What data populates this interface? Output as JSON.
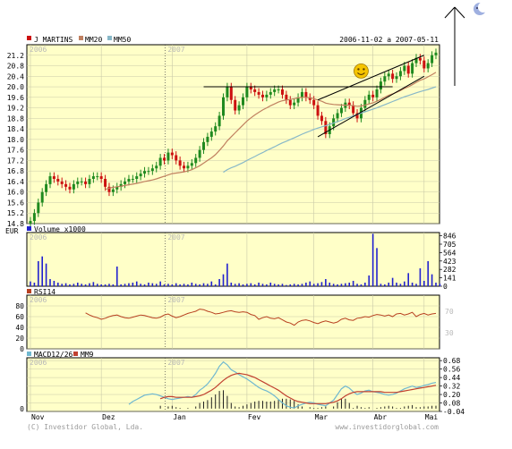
{
  "chart_data": {
    "type": "candlestick",
    "symbol": "J MARTINS",
    "date_range": "2006-11-02 a 2007-05-11",
    "currency_label": "EUR",
    "legend": [
      "J MARTINS",
      "MM20",
      "MM50"
    ],
    "colors": {
      "background": "#ffffc8",
      "grid": "#c9c9a8",
      "up": "#1f8a1f",
      "down": "#cc1010",
      "mm20": "#c08060",
      "mm50": "#88b8c8",
      "rsi": "#b84020",
      "macd": "#70b8d0",
      "mm9": "#c04030",
      "volume": "#2020d0",
      "hist": "#202020"
    },
    "months": [
      "Nov",
      "Dez",
      "Jan",
      "Fev",
      "Mar",
      "Abr",
      "Mai"
    ],
    "year_marks": [
      "2006",
      "2007"
    ],
    "price": {
      "y_ticks": [
        "21.2",
        "20.8",
        "20.4",
        "20.0",
        "19.6",
        "19.2",
        "18.8",
        "18.4",
        "18.0",
        "17.6",
        "17.2",
        "16.8",
        "16.4",
        "16.0",
        "15.6",
        "15.2",
        "14.8"
      ],
      "ylim": [
        14.8,
        21.6
      ],
      "closes": [
        14.9,
        15.2,
        15.6,
        16.0,
        16.3,
        16.6,
        16.5,
        16.4,
        16.3,
        16.2,
        16.1,
        16.3,
        16.4,
        16.4,
        16.3,
        16.5,
        16.6,
        16.6,
        16.5,
        16.2,
        16.0,
        16.1,
        16.2,
        16.3,
        16.4,
        16.5,
        16.5,
        16.6,
        16.7,
        16.8,
        16.8,
        16.9,
        17.0,
        17.3,
        17.2,
        17.5,
        17.4,
        17.2,
        17.0,
        16.9,
        17.0,
        17.1,
        17.3,
        17.6,
        17.9,
        18.1,
        18.3,
        18.5,
        18.9,
        19.6,
        20.0,
        19.5,
        19.1,
        19.3,
        19.6,
        20.0,
        19.9,
        19.8,
        19.7,
        19.6,
        19.7,
        19.8,
        19.9,
        19.9,
        19.7,
        19.5,
        19.3,
        19.4,
        19.6,
        19.8,
        19.6,
        19.5,
        19.3,
        18.9,
        18.7,
        18.2,
        18.5,
        18.8,
        19.0,
        19.2,
        19.4,
        19.3,
        19.0,
        18.8,
        19.2,
        19.5,
        19.7,
        19.6,
        19.9,
        20.2,
        20.4,
        20.5,
        20.3,
        20.4,
        20.6,
        20.8,
        20.5,
        20.9,
        21.1,
        21.0,
        20.7,
        20.9,
        21.2,
        21.3
      ],
      "mm20": [
        null,
        null,
        null,
        null,
        null,
        null,
        null,
        null,
        null,
        null,
        null,
        null,
        null,
        null,
        null,
        null,
        null,
        null,
        null,
        16.1,
        16.15,
        16.18,
        16.2,
        16.22,
        16.25,
        16.28,
        16.3,
        16.33,
        16.36,
        16.4,
        16.43,
        16.46,
        16.5,
        16.55,
        16.6,
        16.65,
        16.7,
        16.72,
        16.74,
        16.77,
        16.8,
        16.85,
        16.92,
        17.0,
        17.1,
        17.2,
        17.3,
        17.42,
        17.58,
        17.75,
        17.95,
        18.1,
        18.25,
        18.4,
        18.55,
        18.7,
        18.82,
        18.93,
        19.03,
        19.12,
        19.2,
        19.28,
        19.35,
        19.42,
        19.47,
        19.5,
        19.52,
        19.55,
        19.58,
        19.6,
        19.6,
        19.58,
        19.55,
        19.5,
        19.45,
        19.38,
        19.35,
        19.33,
        19.32,
        19.31,
        19.3,
        19.3,
        19.28,
        19.26,
        19.27,
        19.3,
        19.35,
        19.39,
        19.45,
        19.52,
        19.6,
        19.68,
        19.73,
        19.79,
        19.86,
        19.94,
        20.0,
        20.08,
        20.17,
        20.25,
        20.3,
        20.38,
        20.46,
        20.55
      ],
      "mm50": [
        null,
        null,
        null,
        null,
        null,
        null,
        null,
        null,
        null,
        null,
        null,
        null,
        null,
        null,
        null,
        null,
        null,
        null,
        null,
        null,
        null,
        null,
        null,
        null,
        null,
        null,
        null,
        null,
        null,
        null,
        null,
        null,
        null,
        null,
        null,
        null,
        null,
        null,
        null,
        null,
        null,
        null,
        null,
        null,
        null,
        null,
        null,
        null,
        null,
        16.75,
        16.85,
        16.92,
        16.98,
        17.05,
        17.12,
        17.2,
        17.28,
        17.35,
        17.43,
        17.5,
        17.58,
        17.65,
        17.72,
        17.8,
        17.87,
        17.93,
        18.0,
        18.06,
        18.13,
        18.2,
        18.26,
        18.32,
        18.38,
        18.43,
        18.48,
        18.52,
        18.57,
        18.62,
        18.68,
        18.73,
        18.79,
        18.84,
        18.9,
        18.95,
        19.0,
        19.05,
        19.1,
        19.15,
        19.2,
        19.26,
        19.32,
        19.38,
        19.44,
        19.5,
        19.56,
        19.62,
        19.67,
        19.72,
        19.77,
        19.82,
        19.86,
        19.9,
        19.95,
        20.0
      ]
    },
    "volume": {
      "label": "Volume x1000",
      "y_ticks": [
        "846",
        "705",
        "564",
        "423",
        "282",
        "141",
        "0"
      ],
      "ylim": [
        0,
        900
      ],
      "values": [
        80,
        60,
        420,
        500,
        380,
        120,
        90,
        60,
        40,
        50,
        30,
        40,
        60,
        40,
        30,
        50,
        70,
        40,
        30,
        30,
        40,
        30,
        330,
        30,
        40,
        50,
        60,
        80,
        40,
        30,
        60,
        50,
        40,
        80,
        30,
        40,
        30,
        50,
        30,
        40,
        30,
        60,
        40,
        30,
        50,
        40,
        80,
        30,
        120,
        200,
        380,
        60,
        40,
        50,
        30,
        40,
        50,
        30,
        60,
        40,
        30,
        60,
        40,
        30,
        40,
        20,
        30,
        40,
        30,
        40,
        60,
        80,
        40,
        50,
        70,
        120,
        60,
        40,
        30,
        40,
        50,
        60,
        90,
        40,
        30,
        60,
        180,
        880,
        640,
        40,
        30,
        60,
        140,
        60,
        40,
        80,
        220,
        60,
        40,
        300,
        90,
        420,
        200,
        60,
        40
      ]
    },
    "rsi": {
      "label": "RSI14",
      "y_ticks_left": [
        "80",
        "60",
        "40",
        "20",
        "0"
      ],
      "y_ticks_right": [
        "70",
        "30"
      ],
      "ylim": [
        0,
        100
      ],
      "values": [
        null,
        null,
        null,
        null,
        null,
        null,
        null,
        null,
        null,
        null,
        null,
        null,
        null,
        null,
        67,
        63,
        60,
        58,
        55,
        57,
        60,
        62,
        63,
        60,
        58,
        57,
        59,
        61,
        63,
        62,
        60,
        58,
        57,
        59,
        63,
        65,
        61,
        58,
        60,
        63,
        66,
        68,
        70,
        74,
        73,
        70,
        68,
        65,
        66,
        68,
        70,
        71,
        69,
        68,
        69,
        68,
        64,
        62,
        55,
        58,
        60,
        57,
        56,
        58,
        54,
        50,
        48,
        44,
        50,
        53,
        54,
        52,
        49,
        47,
        50,
        52,
        50,
        48,
        50,
        55,
        57,
        54,
        53,
        57,
        58,
        60,
        59,
        62,
        64,
        63,
        61,
        63,
        60,
        65,
        66,
        63,
        65,
        68,
        60,
        64,
        66,
        63,
        65,
        66
      ]
    },
    "macd": {
      "label": "MACD12/26",
      "label2": "MM9",
      "y_ticks": [
        "0.68",
        "0.56",
        "0.44",
        "0.32",
        "0.20",
        "0.08",
        "-0.04"
      ],
      "ylim": [
        -0.04,
        0.72
      ],
      "macd": [
        null,
        null,
        null,
        null,
        null,
        null,
        null,
        null,
        null,
        null,
        null,
        null,
        null,
        null,
        null,
        null,
        null,
        null,
        null,
        null,
        null,
        null,
        null,
        null,
        null,
        0.06,
        0.1,
        0.13,
        0.16,
        0.19,
        0.2,
        0.21,
        0.2,
        0.18,
        0.16,
        0.14,
        0.13,
        0.14,
        0.15,
        0.16,
        0.17,
        0.16,
        0.2,
        0.26,
        0.3,
        0.35,
        0.42,
        0.5,
        0.6,
        0.66,
        0.62,
        0.55,
        0.52,
        0.48,
        0.45,
        0.42,
        0.38,
        0.34,
        0.3,
        0.27,
        0.25,
        0.22,
        0.18,
        0.13,
        0.08,
        0.04,
        0.02,
        0.01,
        0.04,
        0.06,
        0.08,
        0.09,
        0.08,
        0.06,
        0.05,
        0.04,
        0.08,
        0.12,
        0.2,
        0.28,
        0.32,
        0.29,
        0.24,
        0.2,
        0.22,
        0.25,
        0.26,
        0.24,
        0.23,
        0.22,
        0.2,
        0.19,
        0.2,
        0.22,
        0.25,
        0.28,
        0.3,
        0.32,
        0.3,
        0.31,
        0.33,
        0.34,
        0.36,
        0.37
      ],
      "signal": [
        null,
        null,
        null,
        null,
        null,
        null,
        null,
        null,
        null,
        null,
        null,
        null,
        null,
        null,
        null,
        null,
        null,
        null,
        null,
        null,
        null,
        null,
        null,
        null,
        null,
        null,
        null,
        null,
        null,
        null,
        null,
        null,
        null,
        0.14,
        0.16,
        0.17,
        0.17,
        0.16,
        0.16,
        0.16,
        0.16,
        0.16,
        0.17,
        0.18,
        0.2,
        0.23,
        0.26,
        0.3,
        0.35,
        0.4,
        0.44,
        0.47,
        0.49,
        0.5,
        0.49,
        0.48,
        0.46,
        0.44,
        0.41,
        0.38,
        0.35,
        0.32,
        0.29,
        0.26,
        0.22,
        0.18,
        0.15,
        0.12,
        0.1,
        0.09,
        0.08,
        0.07,
        0.07,
        0.07,
        0.07,
        0.07,
        0.08,
        0.09,
        0.11,
        0.14,
        0.18,
        0.21,
        0.23,
        0.24,
        0.24,
        0.24,
        0.24,
        0.24,
        0.24,
        0.24,
        0.23,
        0.23,
        0.23,
        0.23,
        0.24,
        0.25,
        0.26,
        0.27,
        0.28,
        0.29,
        0.3,
        0.31,
        0.32,
        0.33
      ]
    },
    "annotations": {
      "resistance": 20.0,
      "channel_lower": [
        [
          73,
          18.1
        ],
        [
          100,
          20.4
        ]
      ],
      "channel_upper": [
        [
          73,
          19.5
        ],
        [
          100,
          21.2
        ]
      ],
      "smiley_at": [
        84,
        20.6
      ]
    }
  },
  "footer": {
    "left": "(C) Investidor Global, Lda.",
    "right": "www.investidorglobal.com"
  },
  "corner_icon": "moon-icon",
  "arrow_icon": "up-arrow-icon"
}
